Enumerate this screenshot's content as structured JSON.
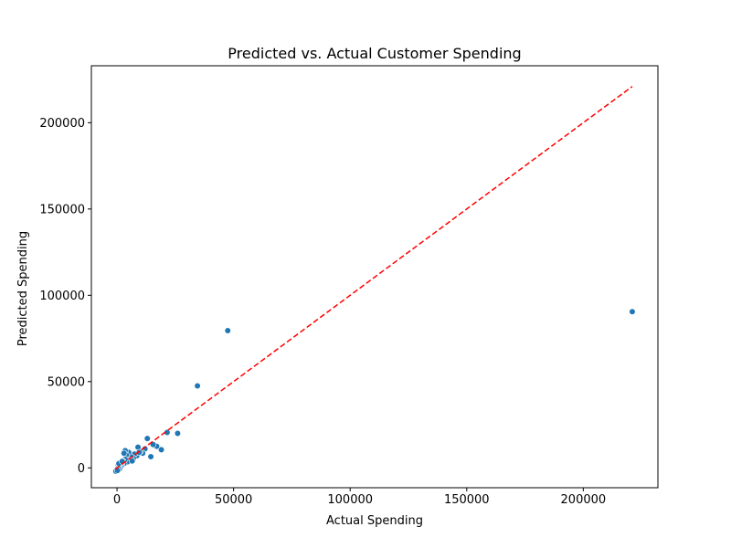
{
  "chart_data": {
    "type": "scatter",
    "title": "Predicted vs. Actual Customer Spending",
    "xlabel": "Actual Spending",
    "ylabel": "Predicted Spending",
    "xlim": [
      -11000,
      232000
    ],
    "ylim": [
      -11500,
      233000
    ],
    "xticks": [
      0,
      50000,
      100000,
      150000,
      200000
    ],
    "yticks": [
      0,
      50000,
      100000,
      150000,
      200000
    ],
    "grid": false,
    "legend": "none",
    "colors": {
      "points": "#1f77b4",
      "reference_line": "#ff0000"
    },
    "reference_line": {
      "x": [
        -800,
        221000
      ],
      "y": [
        -800,
        221000
      ],
      "style": "dashed"
    },
    "points": [
      {
        "x": 221000,
        "y": 90500
      },
      {
        "x": 47500,
        "y": 79500
      },
      {
        "x": 34500,
        "y": 47500
      },
      {
        "x": 26000,
        "y": 20000
      },
      {
        "x": 21500,
        "y": 20500
      },
      {
        "x": 19000,
        "y": 10500
      },
      {
        "x": 17000,
        "y": 12500
      },
      {
        "x": 15500,
        "y": 13500
      },
      {
        "x": 14500,
        "y": 6500
      },
      {
        "x": 13000,
        "y": 17000
      },
      {
        "x": 12000,
        "y": 11000
      },
      {
        "x": 11000,
        "y": 8500
      },
      {
        "x": 10000,
        "y": 9500
      },
      {
        "x": 9000,
        "y": 12000
      },
      {
        "x": 8500,
        "y": 7000
      },
      {
        "x": 7500,
        "y": 8000
      },
      {
        "x": 7000,
        "y": 5500
      },
      {
        "x": 6000,
        "y": 6500
      },
      {
        "x": 5500,
        "y": 4500
      },
      {
        "x": 5000,
        "y": 9000
      },
      {
        "x": 4500,
        "y": 3500
      },
      {
        "x": 4000,
        "y": 7500
      },
      {
        "x": 3500,
        "y": 10000
      },
      {
        "x": 3500,
        "y": 5000
      },
      {
        "x": 3000,
        "y": 2500
      },
      {
        "x": 3000,
        "y": 8500
      },
      {
        "x": 2500,
        "y": 4000
      },
      {
        "x": 2000,
        "y": 1500
      },
      {
        "x": 2000,
        "y": 3000
      },
      {
        "x": 1500,
        "y": 2000
      },
      {
        "x": 1500,
        "y": 500
      },
      {
        "x": 1000,
        "y": 1000
      },
      {
        "x": 1000,
        "y": -500
      },
      {
        "x": 500,
        "y": 1500
      },
      {
        "x": 500,
        "y": 0
      },
      {
        "x": 0,
        "y": -1000
      },
      {
        "x": -500,
        "y": -2000
      },
      {
        "x": 200,
        "y": -1500
      },
      {
        "x": 800,
        "y": 2500
      },
      {
        "x": 2200,
        "y": 3800
      },
      {
        "x": 6500,
        "y": 4000
      },
      {
        "x": 9500,
        "y": 9000
      }
    ]
  }
}
